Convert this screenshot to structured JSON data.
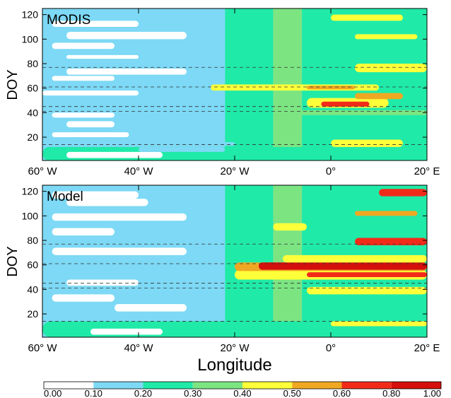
{
  "figure": {
    "xlabel": "Longitude"
  },
  "colorbar": {
    "colors": [
      "#ffffff",
      "#7dd9f5",
      "#20eaa8",
      "#7ce582",
      "#ffff3a",
      "#f0a822",
      "#f22b19",
      "#d50f0c"
    ],
    "tick_labels": [
      "0.00",
      "0.10",
      "0.20",
      "0.30",
      "0.40",
      "0.50",
      "0.60",
      "0.80",
      "1.00"
    ]
  },
  "chart_data": [
    {
      "type": "heatmap",
      "title": "MODIS",
      "xlabel": "",
      "ylabel": "DOY",
      "x_tick_labels": [
        "60° W",
        "40° W",
        "20° W",
        "0°",
        "20° E"
      ],
      "y_ticks": [
        20,
        40,
        60,
        80,
        100,
        120
      ],
      "xlim": [
        -60,
        20
      ],
      "ylim": [
        1,
        125
      ],
      "grid": false,
      "dashed_reference_lines_doy": [
        14,
        41,
        45,
        61,
        77
      ],
      "levels": [
        0.0,
        0.1,
        0.2,
        0.3,
        0.4,
        0.5,
        0.6,
        0.8,
        1.0
      ],
      "bands": [
        {
          "doy": [
            1,
            12
          ],
          "lon": [
            -60,
            20
          ],
          "level": 2
        },
        {
          "doy": [
            3,
            8
          ],
          "lon": [
            -55,
            -35
          ],
          "level": 0
        },
        {
          "doy": [
            8,
            12
          ],
          "lon": [
            -40,
            -22
          ],
          "level": 1
        },
        {
          "doy": [
            13,
            16
          ],
          "lon": [
            -60,
            -20
          ],
          "level": 1
        },
        {
          "doy": [
            12,
            18
          ],
          "lon": [
            0,
            15
          ],
          "level": 4
        },
        {
          "doy": [
            20,
            24
          ],
          "lon": [
            -58,
            -42
          ],
          "level": 0
        },
        {
          "doy": [
            28,
            33
          ],
          "lon": [
            -55,
            -45
          ],
          "level": 0
        },
        {
          "doy": [
            36,
            40
          ],
          "lon": [
            -58,
            -45
          ],
          "level": 0
        },
        {
          "doy": [
            38,
            42
          ],
          "lon": [
            -10,
            20
          ],
          "level": 3
        },
        {
          "doy": [
            44,
            52
          ],
          "lon": [
            -5,
            12
          ],
          "level": 4
        },
        {
          "doy": [
            45,
            49
          ],
          "lon": [
            -2,
            8
          ],
          "level": 6
        },
        {
          "doy": [
            51,
            56
          ],
          "lon": [
            5,
            15
          ],
          "level": 5
        },
        {
          "doy": [
            54,
            58
          ],
          "lon": [
            -60,
            -40
          ],
          "level": 0
        },
        {
          "doy": [
            58,
            63
          ],
          "lon": [
            -25,
            10
          ],
          "level": 4
        },
        {
          "doy": [
            59,
            62
          ],
          "lon": [
            -5,
            5
          ],
          "level": 5
        },
        {
          "doy": [
            66,
            70
          ],
          "lon": [
            -58,
            -45
          ],
          "level": 0
        },
        {
          "doy": [
            71,
            76
          ],
          "lon": [
            -55,
            -30
          ],
          "level": 0
        },
        {
          "doy": [
            73,
            80
          ],
          "lon": [
            5,
            20
          ],
          "level": 4
        },
        {
          "doy": [
            84,
            87
          ],
          "lon": [
            -55,
            -40
          ],
          "level": 0
        },
        {
          "doy": [
            92,
            97
          ],
          "lon": [
            -58,
            -45
          ],
          "level": 0
        },
        {
          "doy": [
            100,
            106
          ],
          "lon": [
            -55,
            -30
          ],
          "level": 0
        },
        {
          "doy": [
            100,
            104
          ],
          "lon": [
            5,
            18
          ],
          "level": 4
        },
        {
          "doy": [
            110,
            115
          ],
          "lon": [
            -58,
            -40
          ],
          "level": 0
        },
        {
          "doy": [
            115,
            120
          ],
          "lon": [
            0,
            15
          ],
          "level": 4
        }
      ]
    },
    {
      "type": "heatmap",
      "title": "Model",
      "xlabel": "",
      "ylabel": "DOY",
      "x_tick_labels": [
        "60° W",
        "40° W",
        "20° W",
        "0°",
        "20° E"
      ],
      "y_ticks": [
        20,
        40,
        60,
        80,
        100,
        120
      ],
      "xlim": [
        -60,
        20
      ],
      "ylim": [
        1,
        125
      ],
      "grid": false,
      "dashed_reference_lines_doy": [
        14,
        41,
        45,
        61,
        77
      ],
      "levels": [
        0.0,
        0.1,
        0.2,
        0.3,
        0.4,
        0.5,
        0.6,
        0.8,
        1.0
      ],
      "bands": [
        {
          "doy": [
            1,
            14
          ],
          "lon": [
            -60,
            20
          ],
          "level": 2
        },
        {
          "doy": [
            3,
            8
          ],
          "lon": [
            -50,
            -35
          ],
          "level": 0
        },
        {
          "doy": [
            10,
            14
          ],
          "lon": [
            0,
            20
          ],
          "level": 4
        },
        {
          "doy": [
            22,
            28
          ],
          "lon": [
            -45,
            -30
          ],
          "level": 0
        },
        {
          "doy": [
            30,
            36
          ],
          "lon": [
            -58,
            -45
          ],
          "level": 0
        },
        {
          "doy": [
            36,
            42
          ],
          "lon": [
            -5,
            20
          ],
          "level": 4
        },
        {
          "doy": [
            43,
            48
          ],
          "lon": [
            -55,
            -40
          ],
          "level": 0
        },
        {
          "doy": [
            48,
            56
          ],
          "lon": [
            -20,
            20
          ],
          "level": 4
        },
        {
          "doy": [
            50,
            54
          ],
          "lon": [
            -5,
            20
          ],
          "level": 6
        },
        {
          "doy": [
            55,
            62
          ],
          "lon": [
            -20,
            20
          ],
          "level": 5
        },
        {
          "doy": [
            56,
            62
          ],
          "lon": [
            -15,
            20
          ],
          "level": 7
        },
        {
          "doy": [
            62,
            68
          ],
          "lon": [
            -10,
            20
          ],
          "level": 4
        },
        {
          "doy": [
            68,
            74
          ],
          "lon": [
            -58,
            -30
          ],
          "level": 0
        },
        {
          "doy": [
            76,
            82
          ],
          "lon": [
            5,
            20
          ],
          "level": 6
        },
        {
          "doy": [
            84,
            90
          ],
          "lon": [
            -58,
            -45
          ],
          "level": 0
        },
        {
          "doy": [
            88,
            94
          ],
          "lon": [
            -12,
            -5
          ],
          "level": 4
        },
        {
          "doy": [
            96,
            102
          ],
          "lon": [
            -58,
            -30
          ],
          "level": 0
        },
        {
          "doy": [
            100,
            104
          ],
          "lon": [
            5,
            18
          ],
          "level": 5
        },
        {
          "doy": [
            108,
            114
          ],
          "lon": [
            -55,
            -38
          ],
          "level": 0
        },
        {
          "doy": [
            114,
            120
          ],
          "lon": [
            -58,
            -40
          ],
          "level": 0
        },
        {
          "doy": [
            116,
            122
          ],
          "lon": [
            10,
            20
          ],
          "level": 6
        }
      ]
    }
  ]
}
